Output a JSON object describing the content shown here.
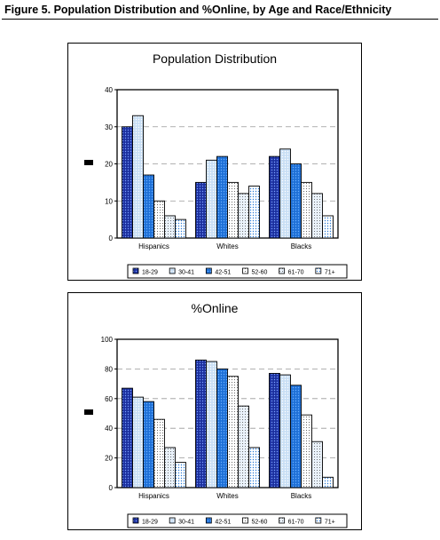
{
  "figure": {
    "title": "Figure 5. Population Distribution and %Online, by Age and Race/Ethnicity"
  },
  "styles": {
    "legend_swatch_colors": [
      "#1b2f9e",
      "#c9dff5",
      "#1e6fd6",
      "#ffffff",
      "#eaf2fb",
      "#ffffff"
    ],
    "pattern_dot_colors": [
      "#7aa0ff",
      "#ffffff",
      "#6ab0ff",
      "#222222",
      "#333333",
      "#2b7bd6"
    ],
    "gridline_color": "#999999"
  },
  "chart_data": [
    {
      "type": "bar",
      "title": "Population Distribution",
      "categories": [
        "Hispanics",
        "Whites",
        "Blacks"
      ],
      "legend_labels": [
        "18-29",
        "30-41",
        "42-51",
        "52-60",
        "61-70",
        "71+"
      ],
      "series": [
        {
          "name": "18-29",
          "values": [
            30,
            15,
            22
          ]
        },
        {
          "name": "30-41",
          "values": [
            33,
            21,
            24
          ]
        },
        {
          "name": "42-51",
          "values": [
            17,
            22,
            20
          ]
        },
        {
          "name": "52-60",
          "values": [
            10,
            15,
            15
          ]
        },
        {
          "name": "61-70",
          "values": [
            6,
            12,
            12
          ]
        },
        {
          "name": "71+",
          "values": [
            5,
            14,
            6
          ]
        }
      ],
      "ylim": [
        0,
        40
      ],
      "yticks": [
        "0",
        "10",
        "20",
        "30",
        "40"
      ],
      "grid": true,
      "legend_position": "bottom"
    },
    {
      "type": "bar",
      "title": "%Online",
      "categories": [
        "Hispanics",
        "Whites",
        "Blacks"
      ],
      "legend_labels": [
        "18-29",
        "30-41",
        "42-51",
        "52-60",
        "61-70",
        "71+"
      ],
      "series": [
        {
          "name": "18-29",
          "values": [
            67,
            86,
            77
          ]
        },
        {
          "name": "30-41",
          "values": [
            61,
            85,
            76
          ]
        },
        {
          "name": "42-51",
          "values": [
            58,
            80,
            69
          ]
        },
        {
          "name": "52-60",
          "values": [
            46,
            75,
            49
          ]
        },
        {
          "name": "61-70",
          "values": [
            27,
            55,
            31
          ]
        },
        {
          "name": "71+",
          "values": [
            17,
            27,
            7
          ]
        }
      ],
      "ylim": [
        0,
        100
      ],
      "yticks": [
        "0",
        "20",
        "40",
        "60",
        "80",
        "100"
      ],
      "grid": true,
      "legend_position": "bottom"
    }
  ]
}
